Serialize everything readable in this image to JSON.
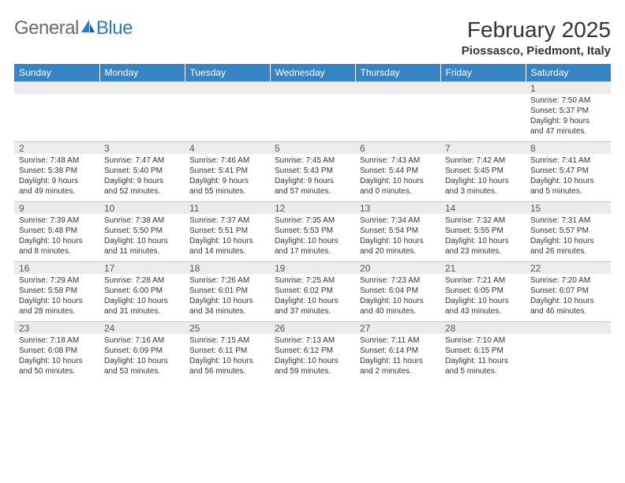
{
  "logo": {
    "word1": "General",
    "word2": "Blue"
  },
  "title": "February 2025",
  "location": "Piossasco, Piedmont, Italy",
  "columns": [
    "Sunday",
    "Monday",
    "Tuesday",
    "Wednesday",
    "Thursday",
    "Friday",
    "Saturday"
  ],
  "colors": {
    "header_bg": "#3784c5",
    "header_text": "#ffffff",
    "daynum_bg": "#ececec",
    "daynum_border": "#c9c9c9",
    "text": "#333333",
    "logo_gray": "#6b6b6b",
    "logo_blue": "#2d7cc1"
  },
  "typography": {
    "title_fontsize": 28,
    "location_fontsize": 15,
    "header_fontsize": 12,
    "daynum_fontsize": 12,
    "body_fontsize": 10
  },
  "weeks": [
    [
      {
        "day": "",
        "lines": [
          "",
          "",
          "",
          ""
        ]
      },
      {
        "day": "",
        "lines": [
          "",
          "",
          "",
          ""
        ]
      },
      {
        "day": "",
        "lines": [
          "",
          "",
          "",
          ""
        ]
      },
      {
        "day": "",
        "lines": [
          "",
          "",
          "",
          ""
        ]
      },
      {
        "day": "",
        "lines": [
          "",
          "",
          "",
          ""
        ]
      },
      {
        "day": "",
        "lines": [
          "",
          "",
          "",
          ""
        ]
      },
      {
        "day": "1",
        "lines": [
          "Sunrise: 7:50 AM",
          "Sunset: 5:37 PM",
          "Daylight: 9 hours",
          "and 47 minutes."
        ]
      }
    ],
    [
      {
        "day": "2",
        "lines": [
          "Sunrise: 7:48 AM",
          "Sunset: 5:38 PM",
          "Daylight: 9 hours",
          "and 49 minutes."
        ]
      },
      {
        "day": "3",
        "lines": [
          "Sunrise: 7:47 AM",
          "Sunset: 5:40 PM",
          "Daylight: 9 hours",
          "and 52 minutes."
        ]
      },
      {
        "day": "4",
        "lines": [
          "Sunrise: 7:46 AM",
          "Sunset: 5:41 PM",
          "Daylight: 9 hours",
          "and 55 minutes."
        ]
      },
      {
        "day": "5",
        "lines": [
          "Sunrise: 7:45 AM",
          "Sunset: 5:43 PM",
          "Daylight: 9 hours",
          "and 57 minutes."
        ]
      },
      {
        "day": "6",
        "lines": [
          "Sunrise: 7:43 AM",
          "Sunset: 5:44 PM",
          "Daylight: 10 hours",
          "and 0 minutes."
        ]
      },
      {
        "day": "7",
        "lines": [
          "Sunrise: 7:42 AM",
          "Sunset: 5:45 PM",
          "Daylight: 10 hours",
          "and 3 minutes."
        ]
      },
      {
        "day": "8",
        "lines": [
          "Sunrise: 7:41 AM",
          "Sunset: 5:47 PM",
          "Daylight: 10 hours",
          "and 5 minutes."
        ]
      }
    ],
    [
      {
        "day": "9",
        "lines": [
          "Sunrise: 7:39 AM",
          "Sunset: 5:48 PM",
          "Daylight: 10 hours",
          "and 8 minutes."
        ]
      },
      {
        "day": "10",
        "lines": [
          "Sunrise: 7:38 AM",
          "Sunset: 5:50 PM",
          "Daylight: 10 hours",
          "and 11 minutes."
        ]
      },
      {
        "day": "11",
        "lines": [
          "Sunrise: 7:37 AM",
          "Sunset: 5:51 PM",
          "Daylight: 10 hours",
          "and 14 minutes."
        ]
      },
      {
        "day": "12",
        "lines": [
          "Sunrise: 7:35 AM",
          "Sunset: 5:53 PM",
          "Daylight: 10 hours",
          "and 17 minutes."
        ]
      },
      {
        "day": "13",
        "lines": [
          "Sunrise: 7:34 AM",
          "Sunset: 5:54 PM",
          "Daylight: 10 hours",
          "and 20 minutes."
        ]
      },
      {
        "day": "14",
        "lines": [
          "Sunrise: 7:32 AM",
          "Sunset: 5:55 PM",
          "Daylight: 10 hours",
          "and 23 minutes."
        ]
      },
      {
        "day": "15",
        "lines": [
          "Sunrise: 7:31 AM",
          "Sunset: 5:57 PM",
          "Daylight: 10 hours",
          "and 26 minutes."
        ]
      }
    ],
    [
      {
        "day": "16",
        "lines": [
          "Sunrise: 7:29 AM",
          "Sunset: 5:58 PM",
          "Daylight: 10 hours",
          "and 28 minutes."
        ]
      },
      {
        "day": "17",
        "lines": [
          "Sunrise: 7:28 AM",
          "Sunset: 6:00 PM",
          "Daylight: 10 hours",
          "and 31 minutes."
        ]
      },
      {
        "day": "18",
        "lines": [
          "Sunrise: 7:26 AM",
          "Sunset: 6:01 PM",
          "Daylight: 10 hours",
          "and 34 minutes."
        ]
      },
      {
        "day": "19",
        "lines": [
          "Sunrise: 7:25 AM",
          "Sunset: 6:02 PM",
          "Daylight: 10 hours",
          "and 37 minutes."
        ]
      },
      {
        "day": "20",
        "lines": [
          "Sunrise: 7:23 AM",
          "Sunset: 6:04 PM",
          "Daylight: 10 hours",
          "and 40 minutes."
        ]
      },
      {
        "day": "21",
        "lines": [
          "Sunrise: 7:21 AM",
          "Sunset: 6:05 PM",
          "Daylight: 10 hours",
          "and 43 minutes."
        ]
      },
      {
        "day": "22",
        "lines": [
          "Sunrise: 7:20 AM",
          "Sunset: 6:07 PM",
          "Daylight: 10 hours",
          "and 46 minutes."
        ]
      }
    ],
    [
      {
        "day": "23",
        "lines": [
          "Sunrise: 7:18 AM",
          "Sunset: 6:08 PM",
          "Daylight: 10 hours",
          "and 50 minutes."
        ]
      },
      {
        "day": "24",
        "lines": [
          "Sunrise: 7:16 AM",
          "Sunset: 6:09 PM",
          "Daylight: 10 hours",
          "and 53 minutes."
        ]
      },
      {
        "day": "25",
        "lines": [
          "Sunrise: 7:15 AM",
          "Sunset: 6:11 PM",
          "Daylight: 10 hours",
          "and 56 minutes."
        ]
      },
      {
        "day": "26",
        "lines": [
          "Sunrise: 7:13 AM",
          "Sunset: 6:12 PM",
          "Daylight: 10 hours",
          "and 59 minutes."
        ]
      },
      {
        "day": "27",
        "lines": [
          "Sunrise: 7:11 AM",
          "Sunset: 6:14 PM",
          "Daylight: 11 hours",
          "and 2 minutes."
        ]
      },
      {
        "day": "28",
        "lines": [
          "Sunrise: 7:10 AM",
          "Sunset: 6:15 PM",
          "Daylight: 11 hours",
          "and 5 minutes."
        ]
      },
      {
        "day": "",
        "lines": [
          "",
          "",
          "",
          ""
        ]
      }
    ]
  ]
}
